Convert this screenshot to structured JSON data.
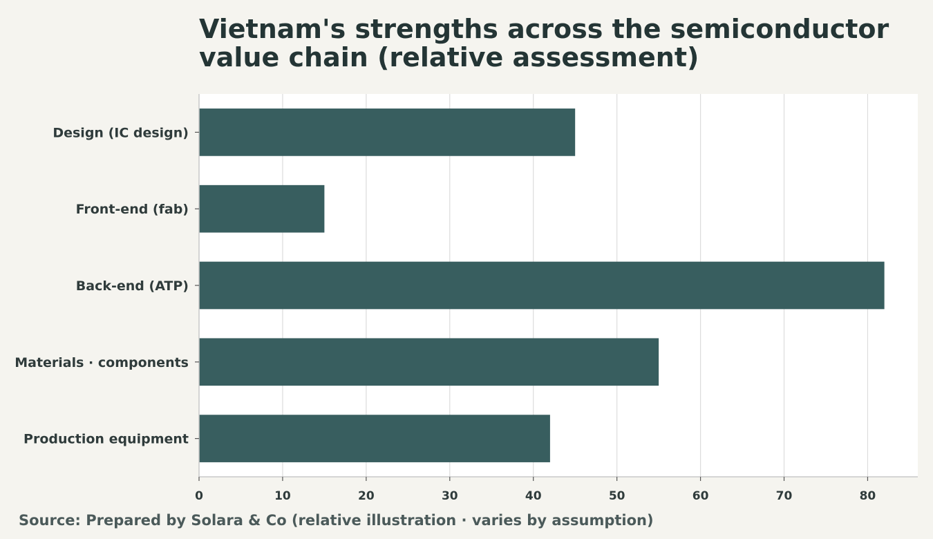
{
  "chart_data": {
    "type": "bar",
    "orientation": "horizontal",
    "title": "Vietnam's strengths across the semiconductor value chain (relative assessment)",
    "source": "Source: Prepared by Solara & Co (relative illustration · varies by assumption)",
    "categories": [
      "Design (IC design)",
      "Front-end (fab)",
      "Back-end (ATP)",
      "Materials · components",
      "Production equipment"
    ],
    "values": [
      45,
      15,
      82,
      55,
      42
    ],
    "xlim": [
      0,
      86
    ],
    "xticks": [
      0,
      10,
      20,
      30,
      40,
      50,
      60,
      70,
      80
    ],
    "grid": true,
    "legend": "none",
    "colors": {
      "bar": "#385e5f",
      "plot_bg": "#ffffff",
      "page_bg": "#f5f4ef",
      "grid": "#dcdcdc"
    }
  }
}
